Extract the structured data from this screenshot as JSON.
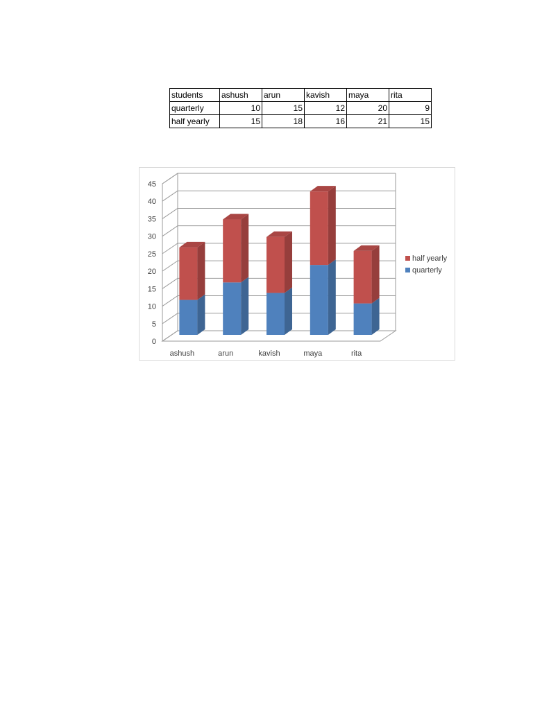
{
  "table": {
    "header": [
      "students",
      "ashush",
      "arun",
      "kavish",
      "maya",
      "rita"
    ],
    "rows": [
      {
        "label": "quarterly",
        "values": [
          "10",
          "15",
          "12",
          "20",
          "9"
        ]
      },
      {
        "label": "half yearly",
        "values": [
          "15",
          "18",
          "16",
          "21",
          "15"
        ]
      }
    ]
  },
  "chart_data": {
    "type": "bar",
    "stacked": true,
    "three_d": true,
    "categories": [
      "ashush",
      "arun",
      "kavish",
      "maya",
      "rita"
    ],
    "series": [
      {
        "name": "quarterly",
        "values": [
          10,
          15,
          12,
          20,
          9
        ],
        "color": "#4f81bd"
      },
      {
        "name": "half yearly",
        "values": [
          15,
          18,
          16,
          21,
          15
        ],
        "color": "#c0504d"
      }
    ],
    "title": "",
    "xlabel": "",
    "ylabel": "",
    "ylim": [
      0,
      45
    ],
    "yticks": [
      "0",
      "5",
      "10",
      "15",
      "20",
      "25",
      "30",
      "35",
      "40",
      "45"
    ],
    "grid": true,
    "legend": {
      "position": "right",
      "entries": [
        "half yearly",
        "quarterly"
      ]
    }
  }
}
